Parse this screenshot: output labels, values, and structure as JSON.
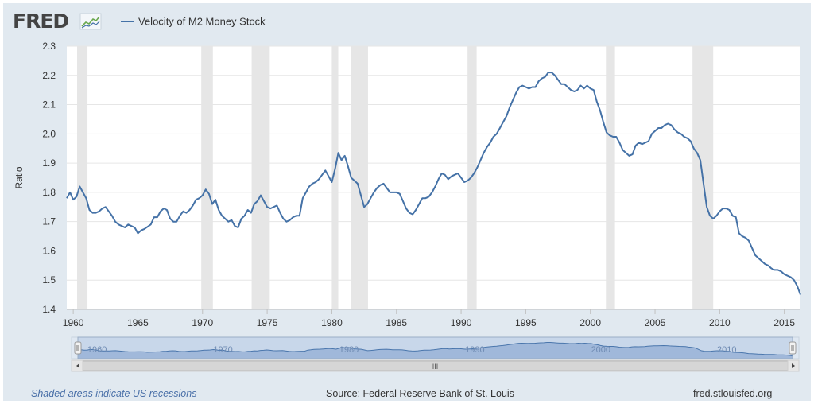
{
  "header": {
    "logo_text": "FRED",
    "logo_icon": "fred-chart-icon"
  },
  "footer": {
    "recession_note": "Shaded areas indicate US recessions",
    "source": "Source: Federal Reserve Bank of St. Louis",
    "url": "fred.stlouisfed.org"
  },
  "navigator": {
    "years": [
      "1960",
      "1970",
      "1980",
      "1990",
      "2000",
      "2010"
    ],
    "scroll_grip": "III",
    "left_arrow_icon": "arrow-left-icon",
    "right_arrow_icon": "arrow-right-icon"
  },
  "colors": {
    "line": "#4572a7",
    "recession": "#e6e6e6",
    "background": "#e1e9f0",
    "navigator_fill": "#a8bfdb"
  },
  "chart_data": {
    "type": "line",
    "title": "",
    "xlabel": "",
    "ylabel": "Ratio",
    "xlim": [
      1959.5,
      2016.25
    ],
    "ylim": [
      1.4,
      2.3
    ],
    "yticks": [
      1.4,
      1.5,
      1.6,
      1.7,
      1.8,
      1.9,
      2.0,
      2.1,
      2.2,
      2.3
    ],
    "xticks": [
      1960,
      1965,
      1970,
      1975,
      1980,
      1985,
      1990,
      1995,
      2000,
      2005,
      2010,
      2015
    ],
    "grid": true,
    "legend_placement": "top-left",
    "recessions": [
      [
        1960.3,
        1961.1
      ],
      [
        1969.9,
        1970.8
      ],
      [
        1973.8,
        1975.2
      ],
      [
        1980.0,
        1980.5
      ],
      [
        1981.5,
        1982.8
      ],
      [
        1990.5,
        1991.2
      ],
      [
        2001.2,
        2001.9
      ],
      [
        2007.9,
        2009.5
      ]
    ],
    "series": [
      {
        "name": "Velocity of M2 Money Stock",
        "x": [
          1959.5,
          1959.75,
          1960,
          1960.25,
          1960.5,
          1960.75,
          1961,
          1961.25,
          1961.5,
          1961.75,
          1962,
          1962.25,
          1962.5,
          1963,
          1963.25,
          1963.5,
          1964,
          1964.25,
          1964.5,
          1964.75,
          1965,
          1965.25,
          1965.5,
          1966,
          1966.25,
          1966.5,
          1966.75,
          1967,
          1967.25,
          1967.5,
          1967.75,
          1968,
          1968.25,
          1968.5,
          1968.75,
          1969,
          1969.25,
          1969.5,
          1969.75,
          1970,
          1970.25,
          1970.5,
          1970.75,
          1971,
          1971.25,
          1971.5,
          1972,
          1972.25,
          1972.5,
          1972.75,
          1973,
          1973.25,
          1973.5,
          1973.75,
          1974,
          1974.25,
          1974.5,
          1974.75,
          1975,
          1975.25,
          1975.5,
          1975.75,
          1976,
          1976.25,
          1976.5,
          1976.75,
          1977,
          1977.25,
          1977.5,
          1977.75,
          1978,
          1978.25,
          1978.5,
          1978.75,
          1979,
          1979.25,
          1979.5,
          1979.75,
          1980,
          1980.25,
          1980.5,
          1980.75,
          1981,
          1981.25,
          1981.5,
          1981.75,
          1982,
          1982.25,
          1982.5,
          1982.75,
          1983,
          1983.25,
          1983.5,
          1983.75,
          1984,
          1984.25,
          1984.5,
          1984.75,
          1985,
          1985.25,
          1985.5,
          1985.75,
          1986,
          1986.25,
          1986.5,
          1986.75,
          1987,
          1987.25,
          1987.5,
          1987.75,
          1988,
          1988.25,
          1988.5,
          1988.75,
          1989,
          1989.25,
          1989.5,
          1989.75,
          1990,
          1990.25,
          1990.5,
          1990.75,
          1991,
          1991.25,
          1991.5,
          1991.75,
          1992,
          1992.25,
          1992.5,
          1992.75,
          1993,
          1993.25,
          1993.5,
          1993.75,
          1994,
          1994.25,
          1994.5,
          1994.75,
          1995,
          1995.25,
          1995.5,
          1995.75,
          1996,
          1996.25,
          1996.5,
          1996.75,
          1997,
          1997.25,
          1997.5,
          1997.75,
          1998,
          1998.25,
          1998.5,
          1998.75,
          1999,
          1999.25,
          1999.5,
          1999.75,
          2000,
          2000.25,
          2000.5,
          2000.75,
          2001,
          2001.25,
          2001.5,
          2001.75,
          2002,
          2002.25,
          2002.5,
          2002.75,
          2003,
          2003.25,
          2003.5,
          2003.75,
          2004,
          2004.25,
          2004.5,
          2004.75,
          2005,
          2005.25,
          2005.5,
          2005.75,
          2006,
          2006.25,
          2006.5,
          2006.75,
          2007,
          2007.25,
          2007.5,
          2007.75,
          2008,
          2008.25,
          2008.5,
          2008.75,
          2009,
          2009.25,
          2009.5,
          2009.75,
          2010,
          2010.25,
          2010.5,
          2010.75,
          2011,
          2011.25,
          2011.5,
          2011.75,
          2012,
          2012.25,
          2012.5,
          2012.75,
          2013,
          2013.25,
          2013.5,
          2013.75,
          2014,
          2014.25,
          2014.5,
          2014.75,
          2015,
          2015.25,
          2015.5,
          2015.75,
          2016,
          2016.25
        ],
        "values": [
          1.78,
          1.8,
          1.775,
          1.785,
          1.82,
          1.8,
          1.78,
          1.74,
          1.73,
          1.73,
          1.735,
          1.745,
          1.75,
          1.72,
          1.7,
          1.69,
          1.68,
          1.69,
          1.685,
          1.68,
          1.66,
          1.67,
          1.675,
          1.69,
          1.715,
          1.715,
          1.735,
          1.745,
          1.74,
          1.71,
          1.7,
          1.7,
          1.72,
          1.735,
          1.73,
          1.74,
          1.755,
          1.775,
          1.78,
          1.79,
          1.81,
          1.795,
          1.76,
          1.775,
          1.74,
          1.72,
          1.7,
          1.705,
          1.685,
          1.68,
          1.71,
          1.72,
          1.74,
          1.73,
          1.76,
          1.77,
          1.79,
          1.77,
          1.75,
          1.745,
          1.75,
          1.755,
          1.73,
          1.71,
          1.7,
          1.705,
          1.715,
          1.72,
          1.72,
          1.78,
          1.8,
          1.82,
          1.83,
          1.835,
          1.845,
          1.86,
          1.875,
          1.855,
          1.835,
          1.88,
          1.935,
          1.91,
          1.925,
          1.89,
          1.85,
          1.84,
          1.83,
          1.79,
          1.75,
          1.76,
          1.78,
          1.8,
          1.815,
          1.825,
          1.83,
          1.815,
          1.8,
          1.8,
          1.8,
          1.795,
          1.77,
          1.745,
          1.73,
          1.725,
          1.74,
          1.76,
          1.78,
          1.78,
          1.785,
          1.8,
          1.82,
          1.845,
          1.865,
          1.86,
          1.845,
          1.855,
          1.86,
          1.865,
          1.85,
          1.835,
          1.84,
          1.85,
          1.865,
          1.885,
          1.91,
          1.935,
          1.955,
          1.97,
          1.99,
          2.0,
          2.02,
          2.04,
          2.06,
          2.09,
          2.115,
          2.14,
          2.16,
          2.165,
          2.16,
          2.155,
          2.16,
          2.16,
          2.18,
          2.19,
          2.195,
          2.21,
          2.21,
          2.2,
          2.185,
          2.17,
          2.17,
          2.16,
          2.15,
          2.145,
          2.15,
          2.165,
          2.155,
          2.165,
          2.155,
          2.15,
          2.11,
          2.08,
          2.04,
          2.005,
          1.995,
          1.99,
          1.99,
          1.97,
          1.945,
          1.935,
          1.925,
          1.93,
          1.96,
          1.97,
          1.965,
          1.97,
          1.975,
          2.0,
          2.01,
          2.02,
          2.02,
          2.03,
          2.035,
          2.03,
          2.015,
          2.005,
          2.0,
          1.99,
          1.985,
          1.975,
          1.95,
          1.935,
          1.91,
          1.83,
          1.75,
          1.72,
          1.71,
          1.72,
          1.735,
          1.745,
          1.745,
          1.74,
          1.72,
          1.715,
          1.66,
          1.65,
          1.645,
          1.635,
          1.61,
          1.585,
          1.575,
          1.565,
          1.555,
          1.55,
          1.54,
          1.535,
          1.535,
          1.53,
          1.52,
          1.515,
          1.51,
          1.5,
          1.48,
          1.45
        ]
      }
    ]
  }
}
